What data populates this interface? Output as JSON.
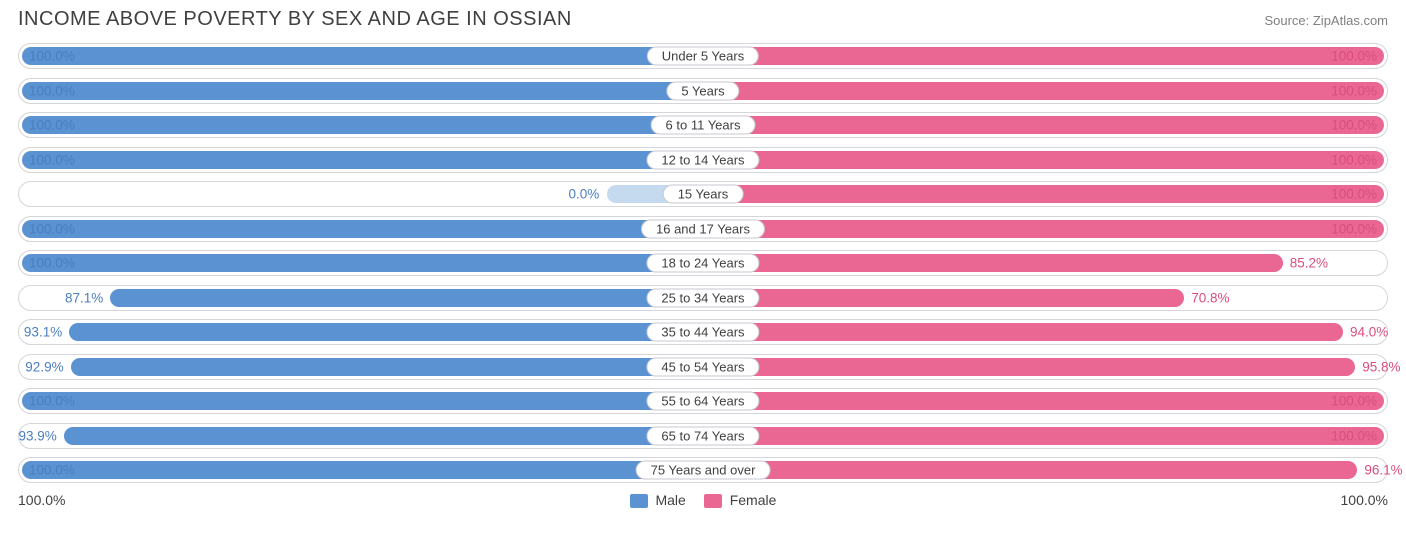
{
  "title": "INCOME ABOVE POVERTY BY SEX AND AGE IN OSSIAN",
  "source": "Source: ZipAtlas.com",
  "colors": {
    "male": "#5a92d2",
    "female": "#eb6793",
    "male_text": "#4a7fbf",
    "female_text": "#d94e7e",
    "track_border": "#d5d5da",
    "cat_border": "#c8c8d0",
    "text": "#404040"
  },
  "axis": {
    "left": "100.0%",
    "right": "100.0%"
  },
  "legend": {
    "male": "Male",
    "female": "Female"
  },
  "chart": {
    "type": "diverging-bar",
    "max": 100.0,
    "ghost_width_pct": 14.0,
    "rows": [
      {
        "category": "Under 5 Years",
        "male": 100.0,
        "female": 100.0,
        "male_label": "100.0%",
        "female_label": "100.0%"
      },
      {
        "category": "5 Years",
        "male": 100.0,
        "female": 100.0,
        "male_label": "100.0%",
        "female_label": "100.0%"
      },
      {
        "category": "6 to 11 Years",
        "male": 100.0,
        "female": 100.0,
        "male_label": "100.0%",
        "female_label": "100.0%"
      },
      {
        "category": "12 to 14 Years",
        "male": 100.0,
        "female": 100.0,
        "male_label": "100.0%",
        "female_label": "100.0%"
      },
      {
        "category": "15 Years",
        "male": 0.0,
        "female": 100.0,
        "male_label": "0.0%",
        "female_label": "100.0%",
        "ghost": true
      },
      {
        "category": "16 and 17 Years",
        "male": 100.0,
        "female": 100.0,
        "male_label": "100.0%",
        "female_label": "100.0%"
      },
      {
        "category": "18 to 24 Years",
        "male": 100.0,
        "female": 85.2,
        "male_label": "100.0%",
        "female_label": "85.2%"
      },
      {
        "category": "25 to 34 Years",
        "male": 87.1,
        "female": 70.8,
        "male_label": "87.1%",
        "female_label": "70.8%"
      },
      {
        "category": "35 to 44 Years",
        "male": 93.1,
        "female": 94.0,
        "male_label": "93.1%",
        "female_label": "94.0%"
      },
      {
        "category": "45 to 54 Years",
        "male": 92.9,
        "female": 95.8,
        "male_label": "92.9%",
        "female_label": "95.8%"
      },
      {
        "category": "55 to 64 Years",
        "male": 100.0,
        "female": 100.0,
        "male_label": "100.0%",
        "female_label": "100.0%"
      },
      {
        "category": "65 to 74 Years",
        "male": 93.9,
        "female": 100.0,
        "male_label": "93.9%",
        "female_label": "100.0%"
      },
      {
        "category": "75 Years and over",
        "male": 100.0,
        "female": 96.1,
        "male_label": "100.0%",
        "female_label": "96.1%"
      }
    ]
  }
}
